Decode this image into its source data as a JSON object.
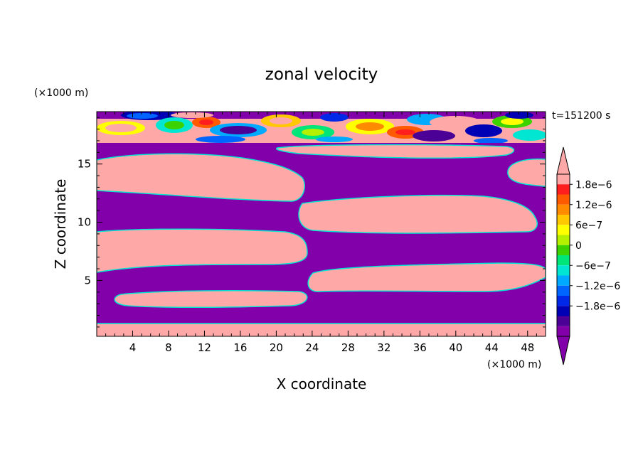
{
  "chart_data": {
    "type": "heatmap",
    "title": "zonal velocity",
    "time_label": "t=151200 s",
    "xlabel": "X coordinate",
    "ylabel": "Z coordinate",
    "x_unit": "(×1000 m)",
    "y_unit": "(×1000 m)",
    "xlim": [
      0,
      50
    ],
    "ylim": [
      0.2,
      19.5
    ],
    "x_ticks": [
      "4",
      "8",
      "12",
      "16",
      "20",
      "24",
      "28",
      "32",
      "36",
      "40",
      "44",
      "48"
    ],
    "y_ticks": [
      "5",
      "10",
      "15"
    ],
    "colorbar": {
      "labels": [
        "1.8e−6",
        "1.2e−6",
        "6e−7",
        "0",
        "−6e−7",
        "−1.2e−6",
        "−1.8e−6"
      ],
      "levels": [
        1.8e-06,
        1.2e-06,
        6e-07,
        0,
        -6e-07,
        -1.2e-06,
        -1.8e-06
      ],
      "colors": [
        "#ffa8a8",
        "#ff1e1e",
        "#ff5a00",
        "#ff8c00",
        "#ffc800",
        "#ffff00",
        "#b4f000",
        "#3cd200",
        "#00e678",
        "#00e6d2",
        "#00aaff",
        "#0064ff",
        "#0028e6",
        "#0000b4",
        "#4b0096",
        "#8200aa"
      ],
      "over_color": "#ffa8a8",
      "under_color": "#8200aa"
    },
    "field_description": "alternating positive (pink) and negative (purple) zonal velocity layers, chaotic multicolor field in top layer"
  }
}
